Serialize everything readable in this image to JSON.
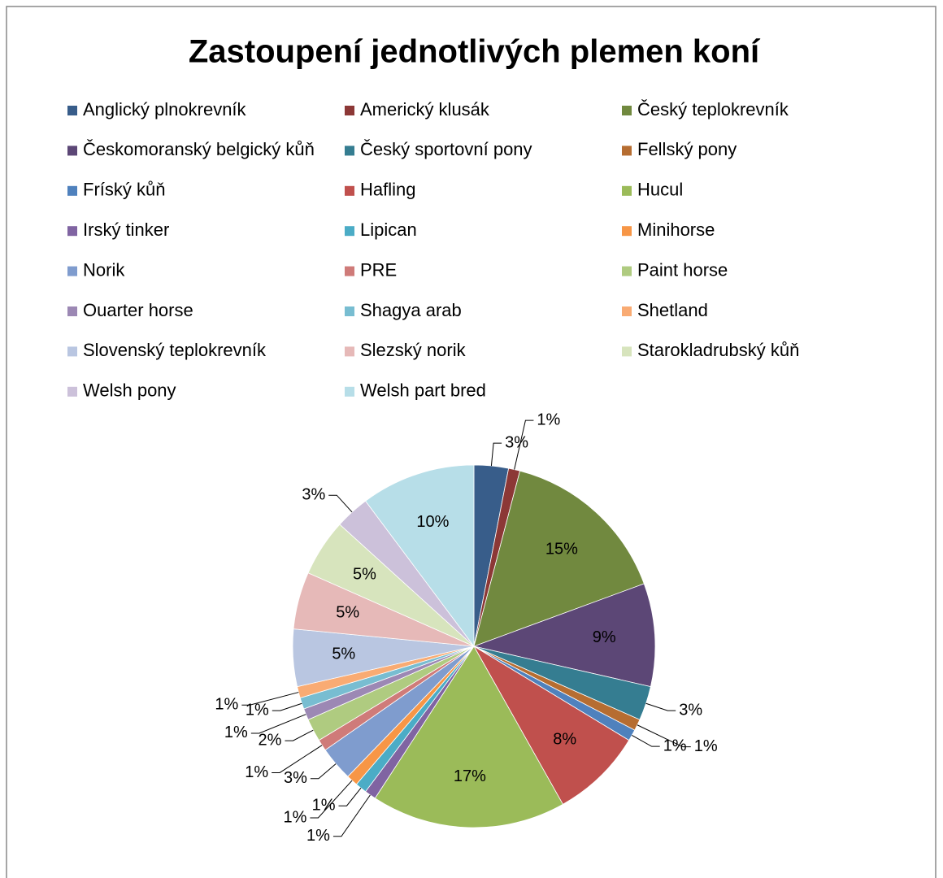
{
  "chart_data": {
    "type": "pie",
    "title": "Zastoupení jednotlivých plemen koní",
    "legend": "top",
    "categories": [
      "Anglický plnokrevník",
      "Americký klusák",
      "Český teplokrevník",
      "Českomoranský belgický kůň",
      "Český sportovní pony",
      "Fellský pony",
      "Fríský kůň",
      "Hafling",
      "Hucul",
      "Irský tinker",
      "Lipican",
      "Minihorse",
      "Norik",
      "PRE",
      "Paint horse",
      "Ouarter horse",
      "Shagya arab",
      "Shetland",
      "Slovenský teplokrevník",
      "Slezský norik",
      "Starokladrubský kůň",
      "Welsh pony",
      "Welsh part bred"
    ],
    "values": [
      3,
      1,
      15,
      9,
      3,
      1,
      1,
      8,
      17,
      1,
      1,
      1,
      3,
      1,
      2,
      1,
      1,
      1,
      5,
      5,
      5,
      3,
      10
    ],
    "value_labels": [
      "3%",
      "1%",
      "15%",
      "9%",
      "3%",
      "1%",
      "1%",
      "8%",
      "17%",
      "1%",
      "1%",
      "1%",
      "3%",
      "1%",
      "2%",
      "1%",
      "1%",
      "1%",
      "5%",
      "5%",
      "5%",
      "3%",
      "10%"
    ],
    "colors": [
      "#385D8A",
      "#8C3836",
      "#71893F",
      "#5C4776",
      "#357D91",
      "#B66D31",
      "#4F81BD",
      "#C0504D",
      "#9BBB59",
      "#8064A2",
      "#4BACC6",
      "#F79646",
      "#7F9CCE",
      "#CF7B79",
      "#AFCB80",
      "#9C88B4",
      "#78BDD1",
      "#F9AB73",
      "#B9C6E1",
      "#E6B9B8",
      "#D7E4BD",
      "#CCC1DA",
      "#B7DEE8"
    ]
  }
}
